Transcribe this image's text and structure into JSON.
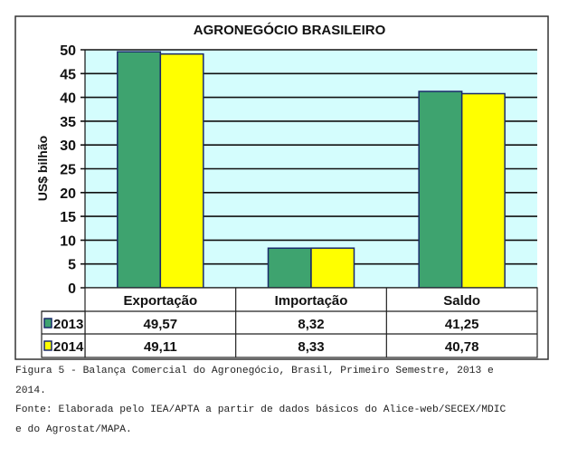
{
  "chart_data": {
    "type": "bar",
    "title": "AGRONEGÓCIO BRASILEIRO",
    "xlabel": "",
    "ylabel": "US$ bilhão",
    "ylim": [
      0,
      50
    ],
    "yticks": [
      "0",
      "5",
      "10",
      "15",
      "20",
      "25",
      "30",
      "35",
      "40",
      "45",
      "50"
    ],
    "grid": true,
    "categories": [
      "Exportação",
      "Importação",
      "Saldo"
    ],
    "series": [
      {
        "name": "2013",
        "values": [
          49.57,
          8.32,
          41.25
        ],
        "labels": [
          "49,57",
          "8,32",
          "41,25"
        ],
        "color": "#3ea36f"
      },
      {
        "name": "2014",
        "values": [
          49.11,
          8.33,
          40.78
        ],
        "labels": [
          "49,11",
          "8,33",
          "40,78"
        ],
        "color": "#ffff00"
      }
    ],
    "legend": "data-table-bottom",
    "plot_bg": "#d4fdfd"
  },
  "caption": {
    "line1": "Figura 5 - Balança Comercial do Agronegócio, Brasil, Primeiro Semestre, 2013 e",
    "line2": "2014.",
    "line3": "Fonte: Elaborada pelo IEA/APTA a partir de dados básicos do Alice-web/SECEX/MDIC",
    "line4": "e do Agrostat/MAPA."
  }
}
